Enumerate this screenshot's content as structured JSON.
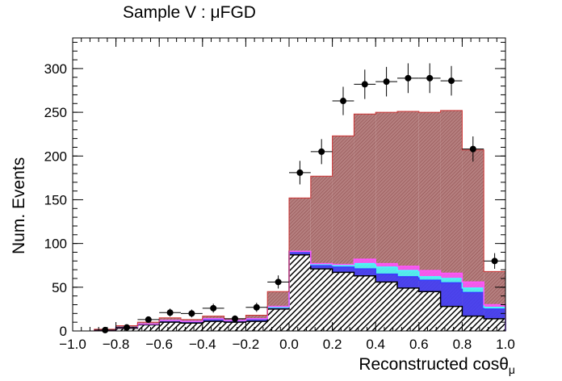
{
  "chart_data": {
    "type": "bar",
    "title": "Sample V : μFGD",
    "xlabel": "Reconstructed cosθ",
    "xlabel_sub": "μ",
    "ylabel": "Num. Events",
    "xlim": [
      -1.0,
      1.0
    ],
    "ylim": [
      0,
      335
    ],
    "x_ticks": [
      -1.0,
      -0.8,
      -0.6,
      -0.4,
      -0.2,
      0.0,
      0.2,
      0.4,
      0.6,
      0.8,
      1.0
    ],
    "x_tick_labels": [
      "−1.0",
      "−0.8",
      "−0.6",
      "−0.4",
      "−0.2",
      "0.0",
      "0.2",
      "0.4",
      "0.6",
      "0.8",
      "1.0"
    ],
    "y_ticks": [
      0,
      50,
      100,
      150,
      200,
      250,
      300
    ],
    "y_tick_labels": [
      "0",
      "50",
      "100",
      "150",
      "200",
      "250",
      "300"
    ],
    "bin_edges": [
      -0.9,
      -0.8,
      -0.7,
      -0.6,
      -0.5,
      -0.4,
      -0.3,
      -0.2,
      -0.1,
      0.0,
      0.1,
      0.2,
      0.3,
      0.4,
      0.5,
      0.6,
      0.7,
      0.8,
      0.9,
      1.0
    ],
    "stack_series": [
      {
        "name": "base",
        "color": "#000000",
        "values": [
          1,
          3,
          7,
          10,
          9,
          11,
          10,
          11,
          25,
          87,
          71,
          67,
          63,
          56,
          49,
          45,
          28,
          17,
          14
        ]
      },
      {
        "name": "blue",
        "color": "#3a3aff",
        "values": [
          1,
          4,
          8,
          12,
          11,
          14,
          12,
          14,
          27,
          91,
          75,
          73,
          71,
          65,
          62,
          58,
          55,
          44,
          25
        ]
      },
      {
        "name": "cyan",
        "color": "#44ffff",
        "values": [
          1,
          4,
          8,
          12,
          11,
          14,
          12,
          14,
          27,
          91,
          76,
          75,
          77,
          73,
          69,
          62,
          60,
          49,
          27
        ]
      },
      {
        "name": "magenta",
        "color": "#ff55ff",
        "values": [
          1,
          4,
          8,
          12,
          11,
          14,
          12,
          14,
          28,
          91,
          77,
          76,
          82,
          77,
          74,
          69,
          66,
          56,
          30
        ]
      },
      {
        "name": "total",
        "color": "#cc3333",
        "values": [
          2,
          6,
          10,
          15,
          13,
          17,
          14,
          18,
          45,
          152,
          177,
          223,
          248,
          250,
          251,
          250,
          252,
          207,
          68
        ]
      }
    ],
    "data_points": {
      "name": "Data",
      "x": [
        -0.85,
        -0.75,
        -0.65,
        -0.55,
        -0.45,
        -0.35,
        -0.25,
        -0.15,
        -0.05,
        0.05,
        0.15,
        0.25,
        0.35,
        0.45,
        0.55,
        0.65,
        0.75,
        0.85,
        0.95
      ],
      "y": [
        1,
        4,
        13,
        21,
        20,
        26,
        14,
        27,
        56,
        181,
        205,
        263,
        282,
        285,
        289,
        289,
        286,
        208,
        80
      ]
    }
  }
}
